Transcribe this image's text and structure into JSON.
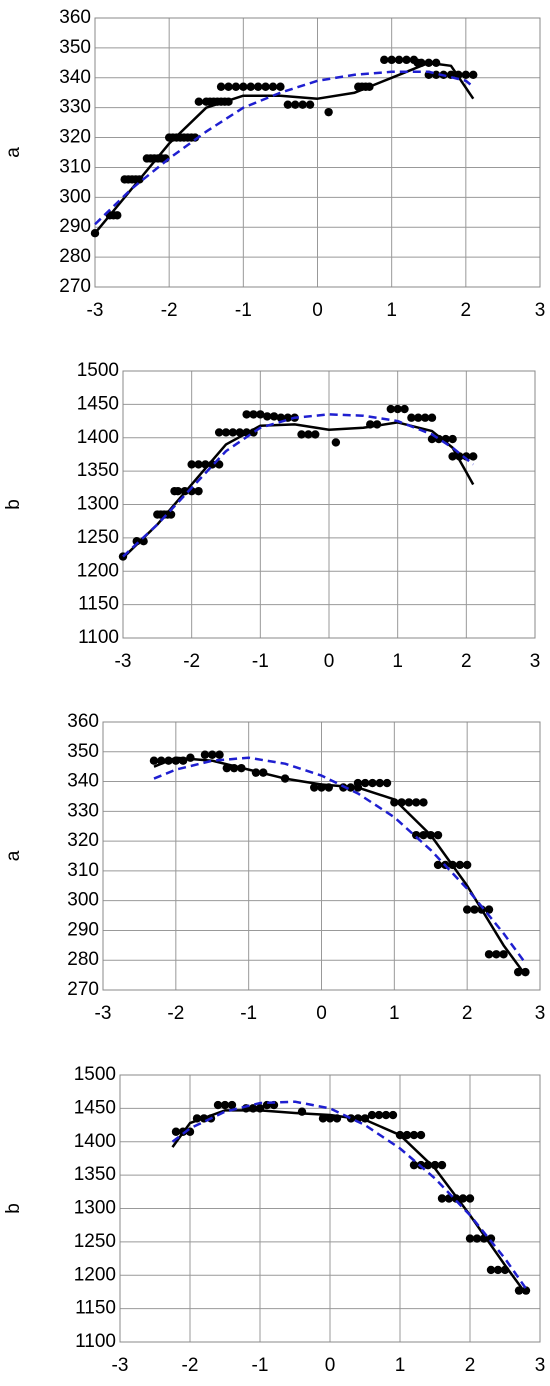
{
  "chart_data": [
    {
      "type": "scatter",
      "ylabel": "a",
      "xlim": [
        -3,
        3
      ],
      "ylim": [
        270,
        360
      ],
      "xticks": [
        -3,
        -2,
        -1,
        0,
        1,
        2,
        3
      ],
      "yticks": [
        270,
        280,
        290,
        300,
        310,
        320,
        330,
        340,
        350,
        360
      ],
      "grid": true,
      "series": [
        {
          "mode": "markers",
          "color": "#000000",
          "x": [
            -3.0,
            -2.8,
            -2.75,
            -2.7,
            -2.6,
            -2.55,
            -2.5,
            -2.45,
            -2.4,
            -2.3,
            -2.25,
            -2.2,
            -2.15,
            -2.1,
            -2.05,
            -2.0,
            -1.95,
            -1.9,
            -1.85,
            -1.8,
            -1.75,
            -1.7,
            -1.65,
            -1.6,
            -1.5,
            -1.45,
            -1.4,
            -1.35,
            -1.3,
            -1.25,
            -1.2,
            -1.3,
            -1.2,
            -1.1,
            -1.0,
            -0.9,
            -0.8,
            -0.7,
            -0.6,
            -0.5,
            -0.4,
            -0.3,
            -0.2,
            -0.1,
            0.15,
            0.55,
            0.6,
            0.65,
            0.7,
            0.9,
            1.0,
            1.1,
            1.2,
            1.3,
            1.35,
            1.4,
            1.5,
            1.6,
            1.5,
            1.6,
            1.7,
            1.8,
            1.9,
            2.0,
            2.1
          ],
          "values": [
            288,
            294,
            294,
            294,
            306,
            306,
            306,
            306,
            306,
            313,
            313,
            313,
            313,
            313,
            313,
            320,
            320,
            320,
            320,
            320,
            320,
            320,
            320,
            332,
            332,
            332,
            332,
            332,
            332,
            332,
            332,
            337,
            337,
            337,
            337,
            337,
            337,
            337,
            337,
            337,
            331,
            331,
            331,
            331,
            328.5,
            337,
            337,
            337,
            337,
            346,
            346,
            346,
            346,
            346,
            345,
            345,
            345,
            345,
            341,
            341,
            341,
            341,
            341,
            341,
            341
          ]
        },
        {
          "mode": "line",
          "color": "#000000",
          "dash": false,
          "x": [
            -3,
            -2.5,
            -2,
            -1.5,
            -1,
            -0.5,
            0,
            0.5,
            1,
            1.5,
            1.8,
            2.1
          ],
          "values": [
            288,
            303,
            318,
            330,
            334,
            334,
            333,
            335,
            340,
            345,
            344,
            333
          ]
        },
        {
          "mode": "line",
          "color": "#1f1fd0",
          "dash": true,
          "x": [
            -3,
            -2.5,
            -2,
            -1.5,
            -1,
            -0.5,
            0,
            0.5,
            1,
            1.5,
            2,
            2.1
          ],
          "values": [
            291,
            303,
            313,
            322,
            330,
            335,
            339,
            341,
            342,
            342,
            339,
            337
          ]
        }
      ]
    },
    {
      "type": "scatter",
      "ylabel": "b",
      "xlim": [
        -3,
        3
      ],
      "ylim": [
        1100,
        1500
      ],
      "xticks": [
        -3,
        -2,
        -1,
        0,
        1,
        2,
        3
      ],
      "yticks": [
        1100,
        1150,
        1200,
        1250,
        1300,
        1350,
        1400,
        1450,
        1500
      ],
      "grid": true,
      "series": [
        {
          "mode": "markers",
          "color": "#000000",
          "x": [
            -3.0,
            -2.8,
            -2.7,
            -2.5,
            -2.45,
            -2.4,
            -2.35,
            -2.3,
            -2.25,
            -2.2,
            -2.1,
            -2.0,
            -1.9,
            -2.0,
            -1.9,
            -1.8,
            -1.7,
            -1.6,
            -1.6,
            -1.5,
            -1.4,
            -1.3,
            -1.2,
            -1.1,
            -1.2,
            -1.1,
            -1.0,
            -0.9,
            -0.8,
            -0.7,
            -0.6,
            -0.5,
            -0.4,
            -0.3,
            -0.2,
            0.1,
            0.6,
            0.7,
            0.9,
            1.0,
            1.1,
            1.2,
            1.3,
            1.4,
            1.5,
            1.5,
            1.6,
            1.7,
            1.8,
            1.8,
            1.9,
            2.0,
            2.1
          ],
          "values": [
            1222,
            1245,
            1245,
            1285,
            1285,
            1285,
            1285,
            1285,
            1320,
            1320,
            1320,
            1320,
            1320,
            1360,
            1360,
            1360,
            1360,
            1360,
            1408,
            1408,
            1408,
            1408,
            1408,
            1408,
            1435,
            1435,
            1435,
            1432,
            1432,
            1430,
            1430,
            1430,
            1405,
            1405,
            1405,
            1393,
            1420,
            1420,
            1443,
            1443,
            1443,
            1430,
            1430,
            1430,
            1430,
            1398,
            1398,
            1398,
            1398,
            1372,
            1372,
            1372,
            1372
          ]
        },
        {
          "mode": "line",
          "color": "#000000",
          "dash": false,
          "x": [
            -3,
            -2.5,
            -2,
            -1.5,
            -1,
            -0.5,
            0,
            0.5,
            1,
            1.5,
            1.8,
            2.1
          ],
          "values": [
            1220,
            1270,
            1330,
            1390,
            1418,
            1420,
            1412,
            1415,
            1423,
            1410,
            1385,
            1330
          ]
        },
        {
          "mode": "line",
          "color": "#1f1fd0",
          "dash": true,
          "x": [
            -3,
            -2.5,
            -2,
            -1.5,
            -1,
            -0.5,
            0,
            0.5,
            1,
            1.5,
            1.8,
            2.1
          ],
          "values": [
            1222,
            1270,
            1325,
            1380,
            1415,
            1430,
            1435,
            1433,
            1425,
            1405,
            1385,
            1360
          ]
        }
      ]
    },
    {
      "type": "scatter",
      "ylabel": "a",
      "xlim": [
        -3,
        3
      ],
      "ylim": [
        270,
        360
      ],
      "xticks": [
        -3,
        -2,
        -1,
        0,
        1,
        2,
        3
      ],
      "yticks": [
        270,
        280,
        290,
        300,
        310,
        320,
        330,
        340,
        350,
        360
      ],
      "grid": true,
      "series": [
        {
          "mode": "markers",
          "color": "#000000",
          "x": [
            -2.3,
            -2.2,
            -2.1,
            -2.0,
            -1.9,
            -1.8,
            -1.6,
            -1.5,
            -1.4,
            -1.3,
            -1.2,
            -1.1,
            -0.9,
            -0.8,
            -0.5,
            -0.1,
            0.0,
            0.1,
            0.3,
            0.4,
            0.5,
            0.5,
            0.6,
            0.7,
            0.8,
            0.9,
            1.0,
            1.1,
            1.2,
            1.3,
            1.4,
            1.3,
            1.4,
            1.5,
            1.6,
            1.6,
            1.7,
            1.8,
            1.9,
            2.0,
            2.0,
            2.1,
            2.2,
            2.3,
            2.3,
            2.4,
            2.5,
            2.7,
            2.8
          ],
          "values": [
            347,
            347,
            347,
            347,
            347,
            348,
            349,
            349,
            349,
            344.5,
            344.5,
            344.5,
            343,
            343,
            341,
            338,
            338,
            338,
            338,
            338,
            338,
            339.5,
            339.5,
            339.5,
            339.5,
            339.5,
            333,
            333,
            333,
            333,
            333,
            322,
            322,
            322,
            322,
            312,
            312,
            312,
            312,
            312,
            297,
            297,
            297,
            297,
            282,
            282,
            282,
            276,
            276
          ]
        },
        {
          "mode": "line",
          "color": "#000000",
          "dash": false,
          "x": [
            -2.3,
            -2,
            -1.5,
            -1,
            -0.5,
            0,
            0.5,
            1,
            1.5,
            2,
            2.5,
            2.8
          ],
          "values": [
            345,
            348,
            347,
            344,
            341,
            339,
            338,
            334,
            322,
            305,
            285,
            275
          ]
        },
        {
          "mode": "line",
          "color": "#1f1fd0",
          "dash": true,
          "x": [
            -2.3,
            -2,
            -1.5,
            -1,
            -0.5,
            0,
            0.5,
            1,
            1.5,
            2,
            2.5,
            2.8
          ],
          "values": [
            341,
            344,
            347,
            348,
            346,
            342,
            336,
            328,
            317,
            304,
            289,
            279
          ]
        }
      ]
    },
    {
      "type": "scatter",
      "ylabel": "b",
      "xlim": [
        -3,
        3
      ],
      "ylim": [
        1100,
        1500
      ],
      "xticks": [
        -3,
        -2,
        -1,
        0,
        1,
        2,
        3
      ],
      "yticks": [
        1100,
        1150,
        1200,
        1250,
        1300,
        1350,
        1400,
        1450,
        1500
      ],
      "grid": true,
      "series": [
        {
          "mode": "markers",
          "color": "#000000",
          "x": [
            -2.2,
            -2.1,
            -2.0,
            -1.9,
            -1.8,
            -1.7,
            -1.6,
            -1.5,
            -1.4,
            -1.2,
            -1.1,
            -1.0,
            -0.9,
            -0.8,
            -0.4,
            -0.1,
            0.0,
            0.1,
            0.3,
            0.4,
            0.5,
            0.6,
            0.7,
            0.8,
            0.9,
            1.0,
            1.1,
            1.2,
            1.3,
            1.2,
            1.3,
            1.4,
            1.5,
            1.6,
            1.6,
            1.7,
            1.8,
            1.9,
            2.0,
            2.0,
            2.1,
            2.2,
            2.3,
            2.3,
            2.4,
            2.5,
            2.7,
            2.8
          ],
          "values": [
            1415,
            1415,
            1415,
            1435,
            1435,
            1435,
            1455,
            1455,
            1455,
            1450,
            1450,
            1450,
            1455,
            1455,
            1445,
            1435,
            1435,
            1435,
            1435,
            1435,
            1435,
            1440,
            1440,
            1440,
            1440,
            1410,
            1410,
            1410,
            1410,
            1365,
            1365,
            1365,
            1365,
            1365,
            1315,
            1315,
            1315,
            1315,
            1315,
            1255,
            1255,
            1255,
            1255,
            1208,
            1208,
            1208,
            1177,
            1177
          ]
        },
        {
          "mode": "line",
          "color": "#000000",
          "dash": false,
          "x": [
            -2.25,
            -2,
            -1.5,
            -1,
            -0.5,
            0,
            0.5,
            1,
            1.5,
            2,
            2.5,
            2.8
          ],
          "values": [
            1392,
            1428,
            1447,
            1447,
            1443,
            1440,
            1433,
            1410,
            1360,
            1290,
            1215,
            1172
          ]
        },
        {
          "mode": "line",
          "color": "#1f1fd0",
          "dash": true,
          "x": [
            -2.25,
            -2,
            -1.5,
            -1,
            -0.5,
            0,
            0.5,
            1,
            1.5,
            2,
            2.5,
            2.8
          ],
          "values": [
            1400,
            1420,
            1445,
            1458,
            1460,
            1450,
            1425,
            1390,
            1345,
            1290,
            1225,
            1180
          ]
        }
      ]
    }
  ]
}
